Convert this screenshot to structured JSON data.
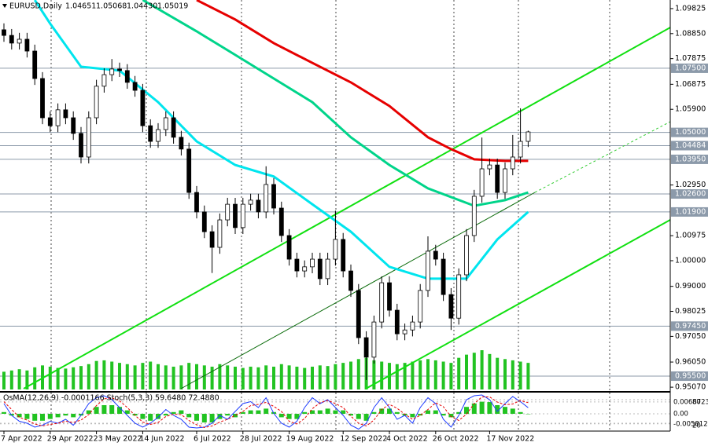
{
  "chart_data": {
    "type": "candlestick",
    "header": {
      "symbol": "EURUSD,Daily",
      "ohlc": [
        "1.04651",
        "1.05068",
        "1.04430",
        "1.05019"
      ]
    },
    "indicator_title": "OsMA(12,26,9) -0.0001166  Stoch(5,3,3) 59.6480 72.4880",
    "categories": [
      "7 Apr 2022",
      null,
      null,
      null,
      null,
      null,
      "29 Apr 2022",
      null,
      null,
      null,
      null,
      null,
      "23 May 2022",
      null,
      null,
      null,
      null,
      null,
      "14 Jun 2022",
      null,
      null,
      null,
      null,
      null,
      null,
      "6 Jul 2022",
      null,
      null,
      null,
      null,
      null,
      "28 Jul 2022",
      null,
      null,
      null,
      null,
      null,
      "19 Aug 2022",
      null,
      null,
      null,
      null,
      null,
      null,
      "12 Sep 2022",
      null,
      null,
      null,
      null,
      null,
      "4 Oct 2022",
      null,
      null,
      null,
      null,
      null,
      "26 Oct 2022",
      null,
      null,
      null,
      null,
      null,
      null,
      "17 Nov 2022",
      null,
      null,
      null,
      null,
      null
    ],
    "open": [
      1.09,
      1.0878,
      1.0848,
      1.0863,
      1.0817,
      1.071,
      1.0557,
      1.0526,
      1.0588,
      1.0557,
      1.0496,
      1.0404,
      1.0557,
      1.068,
      1.0725,
      1.0747,
      1.0741,
      1.0695,
      1.0664,
      1.0526,
      1.0465,
      1.0511,
      1.0557,
      1.0481,
      1.0435,
      1.0266,
      1.019,
      1.0113,
      1.0052,
      1.0159,
      1.022,
      1.0129,
      1.022,
      1.0236,
      1.019,
      1.0297,
      1.0205,
      1.0098,
      1.0006,
      0.996,
      0.9976,
      1.0006,
      0.993,
      1.0006,
      1.0083,
      0.996,
      0.9884,
      0.97,
      0.9624,
      0.9761,
      0.9914,
      0.9807,
      0.9715,
      0.973,
      0.9761,
      0.9884,
      1.0037,
      1.0006,
      0.9868,
      0.9776,
      0.9945,
      1.0098,
      1.0251,
      1.0358,
      1.0373,
      1.0266,
      1.0358,
      1.0404,
      1.04651
    ],
    "high": [
      1.0925,
      1.0903,
      1.0888,
      1.0888,
      1.0842,
      1.0735,
      1.0582,
      1.0613,
      1.0613,
      1.0582,
      1.0521,
      1.0582,
      1.0705,
      1.075,
      1.0786,
      1.0772,
      1.0766,
      1.072,
      1.0689,
      1.0551,
      1.0536,
      1.0582,
      1.0582,
      1.0506,
      1.046,
      1.0291,
      1.0215,
      1.0138,
      1.0184,
      1.0245,
      1.0245,
      1.0245,
      1.0261,
      1.0261,
      1.0368,
      1.0322,
      1.023,
      1.0123,
      1.0031,
      1.0001,
      1.0031,
      1.0031,
      1.0031,
      1.0195,
      1.0108,
      0.9985,
      0.9909,
      0.9725,
      0.9786,
      0.9939,
      0.9939,
      0.9832,
      0.9755,
      0.9786,
      0.9909,
      1.0095,
      1.0062,
      1.0031,
      0.9893,
      0.997,
      1.0123,
      1.0276,
      1.048,
      1.0398,
      1.0398,
      1.0383,
      1.049,
      1.0594,
      1.05068
    ],
    "low": [
      1.0853,
      1.0823,
      1.0823,
      1.0792,
      1.0685,
      1.0532,
      1.0501,
      1.0501,
      1.0532,
      1.0471,
      1.0379,
      1.0379,
      1.0532,
      1.0655,
      1.07,
      1.0716,
      1.067,
      1.0639,
      1.0501,
      1.044,
      1.044,
      1.0486,
      1.0456,
      1.041,
      1.0241,
      1.0165,
      1.0088,
      0.9952,
      1.0027,
      1.0134,
      1.0104,
      1.0104,
      1.0195,
      1.0165,
      1.0165,
      1.018,
      1.0073,
      0.9981,
      0.9935,
      0.9935,
      0.9951,
      0.9905,
      0.9905,
      0.9981,
      0.9935,
      0.9859,
      0.9675,
      0.9535,
      0.9599,
      0.9736,
      0.9782,
      0.969,
      0.969,
      0.9705,
      0.9736,
      0.9859,
      0.9981,
      0.9843,
      0.973,
      0.9751,
      0.992,
      1.0073,
      1.0226,
      1.0333,
      1.0241,
      1.0241,
      1.0333,
      1.0379,
      1.0443
    ],
    "close": [
      1.0878,
      1.0848,
      1.0863,
      1.0817,
      1.071,
      1.0557,
      1.0526,
      1.0588,
      1.0557,
      1.0496,
      1.0404,
      1.0557,
      1.068,
      1.0725,
      1.0747,
      1.0741,
      1.0695,
      1.0664,
      1.0526,
      1.0465,
      1.0511,
      1.0557,
      1.0481,
      1.0435,
      1.0266,
      1.019,
      1.0113,
      1.0052,
      1.0159,
      1.022,
      1.0129,
      1.022,
      1.0236,
      1.019,
      1.0297,
      1.0205,
      1.0098,
      1.0006,
      0.996,
      0.9976,
      1.0006,
      0.993,
      1.0006,
      1.0083,
      0.996,
      0.9884,
      0.97,
      0.9624,
      0.9761,
      0.9914,
      0.9807,
      0.9715,
      0.973,
      0.9761,
      0.9884,
      1.0037,
      1.0006,
      0.9868,
      0.9776,
      0.9945,
      1.0098,
      1.0251,
      1.0358,
      1.0373,
      1.0266,
      1.0358,
      1.0404,
      1.0465,
      1.05019
    ],
    "up_color": "#ffffff",
    "down_color": "#000000",
    "volume": [
      28,
      30,
      32,
      30,
      35,
      38,
      36,
      34,
      33,
      35,
      37,
      40,
      45,
      46,
      44,
      42,
      40,
      38,
      42,
      44,
      40,
      38,
      36,
      38,
      42,
      40,
      38,
      36,
      40,
      38,
      36,
      34,
      36,
      35,
      38,
      36,
      40,
      38,
      36,
      34,
      36,
      38,
      37,
      40,
      42,
      44,
      48,
      50,
      46,
      44,
      42,
      40,
      42,
      44,
      46,
      48,
      46,
      44,
      42,
      50,
      55,
      58,
      62,
      56,
      50,
      48,
      46,
      44,
      42
    ],
    "volume_color": "#22c322",
    "moving_averages": [
      {
        "color": "#e60000",
        "index": [
          25,
          30,
          35,
          40,
          45,
          50,
          55,
          58,
          61,
          65,
          68
        ],
        "values": [
          1.1016,
          1.094,
          1.0848,
          1.0771,
          1.0695,
          1.0603,
          1.0481,
          1.0435,
          1.0395,
          1.0389,
          1.0389
        ]
      },
      {
        "color": "#00d48a",
        "index": [
          18,
          25,
          30,
          35,
          40,
          45,
          50,
          55,
          61,
          65,
          68
        ],
        "values": [
          1.1016,
          1.0894,
          1.0802,
          1.071,
          1.0618,
          1.0481,
          1.0373,
          1.0282,
          1.0214,
          1.0236,
          1.0266
        ]
      },
      {
        "color": "#00e5ee",
        "index": [
          4,
          6,
          10,
          15,
          20,
          25,
          30,
          35,
          40,
          45,
          50,
          55,
          60,
          64,
          68
        ],
        "values": [
          1.1016,
          1.0924,
          1.0756,
          1.0741,
          1.0618,
          1.0465,
          1.0373,
          1.0328,
          1.022,
          1.0113,
          0.9976,
          0.993,
          0.993,
          1.0083,
          1.019
        ]
      }
    ],
    "levels": [
      {
        "value": 1.075,
        "label": "1.07500"
      },
      {
        "value": 1.05,
        "label": "1.05000"
      },
      {
        "value": 1.04484,
        "label": "1.04484"
      },
      {
        "value": 1.0395,
        "label": "1.03950"
      },
      {
        "value": 1.026,
        "label": "1.02600"
      },
      {
        "value": 1.019,
        "label": "1.01900"
      },
      {
        "value": 0.9745,
        "label": "0.97450"
      },
      {
        "value": 0.955,
        "label": "0.95500"
      }
    ],
    "level_color": "#8c9aaa",
    "ylim": [
      0.9492,
      1.1016
    ],
    "yticks": [
      1.09825,
      {
        "value": 1.0885,
        "label": "1.08850"
      },
      1.07875,
      1.06875,
      {
        "value": 1.059,
        "label": "1.05900"
      },
      {
        "value": 1.0295,
        "label": "1.02950"
      },
      1.00975,
      {
        "value": 1,
        "label": "1.00000"
      },
      {
        "value": 0.99,
        "label": "0.99000"
      },
      0.98025,
      {
        "value": 0.9705,
        "label": "0.97050"
      },
      {
        "value": 0.9605,
        "label": "0.96050"
      },
      {
        "value": 0.9507,
        "label": "0.95070"
      }
    ],
    "osma": {
      "color": "#22c322",
      "ylim": [
        -0.01,
        0.01
      ],
      "yticks": [
        0.0068723,
        {
          "value": 0,
          "label": "0.00"
        },
        -0.0058123
      ],
      "values": [
        0.001,
        -0.001,
        -0.002,
        -0.003,
        -0.004,
        -0.004,
        -0.003,
        -0.002,
        -0.001,
        -0.002,
        -0.001,
        0.002,
        0.004,
        0.005,
        0.005,
        0.004,
        0.002,
        -0.001,
        -0.003,
        -0.004,
        -0.003,
        -0.001,
        0.001,
        0.002,
        -0.002,
        -0.004,
        -0.005,
        -0.005,
        -0.003,
        -0.001,
        -0.002,
        0.001,
        0.002,
        0.002,
        0.003,
        0.001,
        -0.002,
        -0.003,
        -0.003,
        0.001,
        0.002,
        0.002,
        0.003,
        0.002,
        0.002,
        -0.001,
        -0.003,
        -0.004,
        0.001,
        0.003,
        0.003,
        0.001,
        -0.001,
        -0.002,
        -0.001,
        0.002,
        0.002,
        -0.001,
        -0.002,
        0.001,
        0.004,
        0.006,
        0.007,
        0.0068,
        0.005,
        0.004,
        0.003,
        0.001,
        -0.0001166
      ]
    },
    "stoch": {
      "ylim": [
        0,
        100
      ],
      "yticks": [
        80,
        20
      ],
      "main": {
        "color": "#1e3cff",
        "values": [
          70,
          40,
          25,
          20,
          10,
          15,
          25,
          20,
          30,
          15,
          40,
          70,
          85,
          90,
          80,
          60,
          40,
          20,
          10,
          20,
          35,
          55,
          40,
          30,
          10,
          8,
          10,
          20,
          40,
          30,
          50,
          70,
          75,
          60,
          85,
          45,
          20,
          10,
          25,
          60,
          85,
          70,
          80,
          60,
          40,
          15,
          5,
          20,
          60,
          85,
          60,
          30,
          40,
          20,
          60,
          85,
          70,
          30,
          10,
          40,
          80,
          90,
          92,
          80,
          50,
          70,
          88,
          75,
          59.648
        ]
      },
      "signal": {
        "color": "#e60000",
        "values": [
          75,
          55,
          35,
          28,
          18,
          13,
          17,
          20,
          25,
          22,
          28,
          42,
          65,
          82,
          85,
          77,
          60,
          40,
          23,
          17,
          22,
          37,
          43,
          42,
          27,
          16,
          9,
          13,
          23,
          30,
          40,
          50,
          65,
          68,
          73,
          63,
          50,
          25,
          18,
          32,
          57,
          72,
          78,
          70,
          60,
          38,
          20,
          13,
          28,
          55,
          68,
          58,
          43,
          30,
          40,
          55,
          72,
          62,
          37,
          27,
          43,
          70,
          87,
          87,
          74,
          67,
          69,
          78,
          72.488
        ]
      }
    }
  }
}
